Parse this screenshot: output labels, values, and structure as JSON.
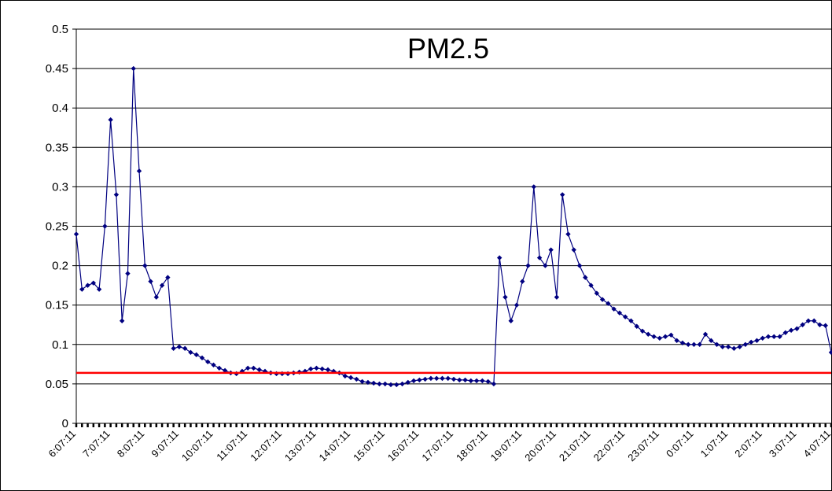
{
  "chart_data": {
    "type": "line",
    "title": "PM2.5",
    "categories": [
      "6:07:11",
      null,
      null,
      null,
      null,
      null,
      "7:07:11",
      null,
      null,
      null,
      null,
      null,
      "8:07:11",
      null,
      null,
      null,
      null,
      null,
      "9:07:11",
      null,
      null,
      null,
      null,
      null,
      "10:07:11",
      null,
      null,
      null,
      null,
      null,
      "11:07:11",
      null,
      null,
      null,
      null,
      null,
      "12:07:11",
      null,
      null,
      null,
      null,
      null,
      "13:07:11",
      null,
      null,
      null,
      null,
      null,
      "14:07:11",
      null,
      null,
      null,
      null,
      null,
      "15:07:11",
      null,
      null,
      null,
      null,
      null,
      "16:07:11",
      null,
      null,
      null,
      null,
      null,
      "17:07:11",
      null,
      null,
      null,
      null,
      null,
      "18:07:11",
      null,
      null,
      null,
      null,
      null,
      "19:07:11",
      null,
      null,
      null,
      null,
      null,
      "20:07:11",
      null,
      null,
      null,
      null,
      null,
      "21:07:11",
      null,
      null,
      null,
      null,
      null,
      "22:07:11",
      null,
      null,
      null,
      null,
      null,
      "23:07:11",
      null,
      null,
      null,
      null,
      null,
      "0:07:11",
      null,
      null,
      null,
      null,
      null,
      "1:07:11",
      null,
      null,
      null,
      null,
      null,
      "2:07:11",
      null,
      null,
      null,
      null,
      null,
      "3:07:11",
      null,
      null,
      null,
      null,
      null,
      "4:07:11"
    ],
    "series": [
      {
        "name": "PM2.5",
        "color": "#000080",
        "values": [
          0.24,
          0.17,
          0.175,
          0.178,
          0.17,
          0.25,
          0.385,
          0.29,
          0.13,
          0.19,
          0.45,
          0.32,
          0.2,
          0.18,
          0.16,
          0.175,
          0.185,
          0.095,
          0.097,
          0.095,
          0.09,
          0.087,
          0.083,
          0.078,
          0.074,
          0.07,
          0.067,
          0.064,
          0.063,
          0.066,
          0.07,
          0.07,
          0.068,
          0.066,
          0.064,
          0.063,
          0.063,
          0.063,
          0.064,
          0.065,
          0.066,
          0.069,
          0.07,
          0.069,
          0.068,
          0.066,
          0.064,
          0.06,
          0.058,
          0.056,
          0.053,
          0.052,
          0.051,
          0.05,
          0.05,
          0.049,
          0.049,
          0.05,
          0.052,
          0.054,
          0.055,
          0.056,
          0.057,
          0.057,
          0.057,
          0.057,
          0.056,
          0.055,
          0.055,
          0.054,
          0.054,
          0.054,
          0.053,
          0.05,
          0.21,
          0.16,
          0.13,
          0.15,
          0.18,
          0.2,
          0.3,
          0.21,
          0.2,
          0.22,
          0.16,
          0.29,
          0.24,
          0.22,
          0.2,
          0.185,
          0.175,
          0.165,
          0.157,
          0.152,
          0.145,
          0.14,
          0.135,
          0.13,
          0.123,
          0.117,
          0.113,
          0.11,
          0.108,
          0.11,
          0.112,
          0.105,
          0.102,
          0.1,
          0.1,
          0.1,
          0.113,
          0.105,
          0.1,
          0.097,
          0.097,
          0.095,
          0.097,
          0.1,
          0.103,
          0.105,
          0.108,
          0.11,
          0.11,
          0.11,
          0.115,
          0.118,
          0.12,
          0.125,
          0.13,
          0.13,
          0.125,
          0.124,
          0.09
        ]
      }
    ],
    "reference_line": {
      "value": 0.064,
      "color": "#ff0000"
    },
    "ylim": [
      0,
      0.5
    ],
    "yticks": [
      0,
      0.05,
      0.1,
      0.15,
      0.2,
      0.25,
      0.3,
      0.35,
      0.4,
      0.45,
      0.5
    ],
    "grid": true
  }
}
